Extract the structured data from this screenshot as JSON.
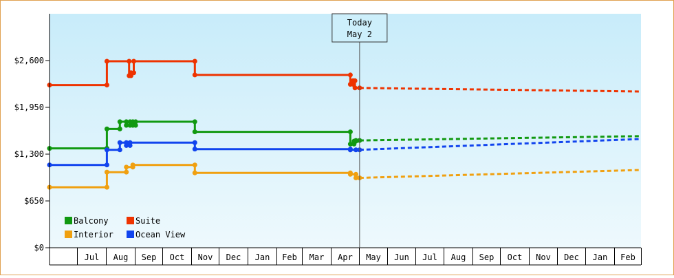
{
  "chart_data": {
    "type": "line",
    "title": "",
    "xlabel": "",
    "ylabel": "",
    "ylim": [
      0,
      3250
    ],
    "y_ticks": [
      {
        "value": 0,
        "label": "$0"
      },
      {
        "value": 650,
        "label": "$650"
      },
      {
        "value": 1300,
        "label": "$1,300"
      },
      {
        "value": 1950,
        "label": "$1,950"
      },
      {
        "value": 2600,
        "label": "$2,600"
      }
    ],
    "x_start": "2022-06-01",
    "x_end": "2024-03-01",
    "x_ticks": [
      {
        "label": "Jul",
        "start": "2022-07-01",
        "end": "2022-08-01"
      },
      {
        "label": "Aug",
        "start": "2022-08-01",
        "end": "2022-09-01"
      },
      {
        "label": "Sep",
        "start": "2022-09-01",
        "end": "2022-10-01"
      },
      {
        "label": "Oct",
        "start": "2022-10-01",
        "end": "2022-11-01"
      },
      {
        "label": "Nov",
        "start": "2022-11-01",
        "end": "2022-12-01"
      },
      {
        "label": "Dec",
        "start": "2022-12-01",
        "end": "2023-01-01"
      },
      {
        "label": "Jan",
        "start": "2023-01-01",
        "end": "2023-02-01"
      },
      {
        "label": "Feb",
        "start": "2023-02-01",
        "end": "2023-03-01"
      },
      {
        "label": "Mar",
        "start": "2023-03-01",
        "end": "2023-04-01"
      },
      {
        "label": "Apr",
        "start": "2023-04-01",
        "end": "2023-05-01"
      },
      {
        "label": "May",
        "start": "2023-05-01",
        "end": "2023-06-01"
      },
      {
        "label": "Jun",
        "start": "2023-06-01",
        "end": "2023-07-01"
      },
      {
        "label": "Jul",
        "start": "2023-07-01",
        "end": "2023-08-01"
      },
      {
        "label": "Aug",
        "start": "2023-08-01",
        "end": "2023-09-01"
      },
      {
        "label": "Sep",
        "start": "2023-09-01",
        "end": "2023-10-01"
      },
      {
        "label": "Oct",
        "start": "2023-10-01",
        "end": "2023-11-01"
      },
      {
        "label": "Nov",
        "start": "2023-11-01",
        "end": "2023-12-01"
      },
      {
        "label": "Dec",
        "start": "2023-12-01",
        "end": "2024-01-01"
      },
      {
        "label": "Jan",
        "start": "2024-01-01",
        "end": "2024-02-01"
      },
      {
        "label": "Feb",
        "start": "2024-02-01",
        "end": "2024-03-01"
      }
    ],
    "today": {
      "date": "2023-05-02",
      "label_line1": "Today",
      "label_line2": "May 2"
    },
    "legend": [
      {
        "name": "Balcony",
        "color": "#119911"
      },
      {
        "name": "Suite",
        "color": "#ee3300"
      },
      {
        "name": "Interior",
        "color": "#f0a010"
      },
      {
        "name": "Ocean View",
        "color": "#1144ee"
      }
    ],
    "series": [
      {
        "name": "Balcony",
        "color": "#119911",
        "history": [
          [
            "2022-06-01",
            1380
          ],
          [
            "2022-08-02",
            1380
          ],
          [
            "2022-08-02",
            1650
          ],
          [
            "2022-08-16",
            1650
          ],
          [
            "2022-08-16",
            1750
          ],
          [
            "2022-08-23",
            1750
          ],
          [
            "2022-08-23",
            1700
          ],
          [
            "2022-08-27",
            1700
          ],
          [
            "2022-08-27",
            1750
          ],
          [
            "2022-08-30",
            1750
          ],
          [
            "2022-08-30",
            1700
          ],
          [
            "2022-09-02",
            1700
          ],
          [
            "2022-09-02",
            1750
          ],
          [
            "2022-11-05",
            1750
          ],
          [
            "2022-11-05",
            1610
          ],
          [
            "2023-04-22",
            1610
          ],
          [
            "2023-04-22",
            1440
          ],
          [
            "2023-04-26",
            1440
          ],
          [
            "2023-04-26",
            1480
          ],
          [
            "2023-04-28",
            1480
          ],
          [
            "2023-04-28",
            1490
          ],
          [
            "2023-05-02",
            1490
          ]
        ],
        "forecast": [
          [
            "2023-05-02",
            1490
          ],
          [
            "2024-03-01",
            1550
          ]
        ]
      },
      {
        "name": "Suite",
        "color": "#ee3300",
        "history": [
          [
            "2022-06-01",
            2260
          ],
          [
            "2022-08-02",
            2260
          ],
          [
            "2022-08-02",
            2590
          ],
          [
            "2022-08-26",
            2590
          ],
          [
            "2022-08-26",
            2390
          ],
          [
            "2022-08-28",
            2390
          ],
          [
            "2022-08-28",
            2430
          ],
          [
            "2022-08-31",
            2430
          ],
          [
            "2022-08-31",
            2590
          ],
          [
            "2022-11-05",
            2590
          ],
          [
            "2022-11-05",
            2400
          ],
          [
            "2023-04-22",
            2400
          ],
          [
            "2023-04-22",
            2270
          ],
          [
            "2023-04-25",
            2270
          ],
          [
            "2023-04-25",
            2320
          ],
          [
            "2023-04-27",
            2320
          ],
          [
            "2023-04-27",
            2220
          ],
          [
            "2023-05-02",
            2220
          ]
        ],
        "forecast": [
          [
            "2023-05-02",
            2220
          ],
          [
            "2024-03-01",
            2170
          ]
        ]
      },
      {
        "name": "Interior",
        "color": "#f0a010",
        "history": [
          [
            "2022-06-01",
            840
          ],
          [
            "2022-08-02",
            840
          ],
          [
            "2022-08-02",
            1050
          ],
          [
            "2022-08-23",
            1050
          ],
          [
            "2022-08-23",
            1120
          ],
          [
            "2022-08-30",
            1120
          ],
          [
            "2022-08-30",
            1150
          ],
          [
            "2022-11-05",
            1150
          ],
          [
            "2022-11-05",
            1040
          ],
          [
            "2023-04-22",
            1040
          ],
          [
            "2023-04-22",
            1020
          ],
          [
            "2023-04-28",
            1020
          ],
          [
            "2023-04-28",
            970
          ],
          [
            "2023-05-02",
            970
          ]
        ],
        "forecast": [
          [
            "2023-05-02",
            970
          ],
          [
            "2024-03-01",
            1080
          ]
        ]
      },
      {
        "name": "Ocean View",
        "color": "#1144ee",
        "history": [
          [
            "2022-06-01",
            1150
          ],
          [
            "2022-08-02",
            1150
          ],
          [
            "2022-08-02",
            1360
          ],
          [
            "2022-08-16",
            1360
          ],
          [
            "2022-08-16",
            1460
          ],
          [
            "2022-08-23",
            1460
          ],
          [
            "2022-08-23",
            1420
          ],
          [
            "2022-08-27",
            1420
          ],
          [
            "2022-08-27",
            1460
          ],
          [
            "2022-11-05",
            1460
          ],
          [
            "2022-11-05",
            1370
          ],
          [
            "2023-04-22",
            1370
          ],
          [
            "2023-04-22",
            1360
          ],
          [
            "2023-04-28",
            1360
          ],
          [
            "2023-05-02",
            1360
          ]
        ],
        "forecast": [
          [
            "2023-05-02",
            1360
          ],
          [
            "2024-03-01",
            1510
          ]
        ]
      }
    ]
  }
}
